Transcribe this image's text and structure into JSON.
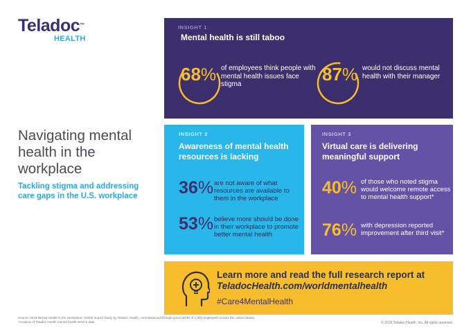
{
  "logo": {
    "name": "Teladoc",
    "tm": "™",
    "sub": "HEALTH"
  },
  "title": "Navigating mental health in the workplace",
  "subtitle": "Tackling stigma and addressing care gaps in the U.S. workplace",
  "insight1": {
    "label": "INSIGHT 1",
    "heading": "Mental health is still taboo",
    "stats": [
      {
        "number": "68",
        "pct": "%",
        "text": "of employees think people with mental health issues face stigma"
      },
      {
        "number": "87",
        "pct": "%",
        "text": "would not discuss mental health with their manager"
      }
    ]
  },
  "insight2": {
    "label": "INSIGHT 2",
    "heading": "Awareness of mental health resources is lacking",
    "stats": [
      {
        "number": "36",
        "pct": "%",
        "text": "are not aware of what resources are available to them in the workplace"
      },
      {
        "number": "53",
        "pct": "%",
        "text": "believe more should be done in their workplace to promote better mental health"
      }
    ]
  },
  "insight3": {
    "label": "INSIGHT 3",
    "heading": "Virtual care is delivering meaningful support",
    "stats": [
      {
        "number": "40",
        "pct": "%",
        "text": "of those who noted stigma would welcome remote access to mental health support*"
      },
      {
        "number": "76",
        "pct": "%",
        "text": "with depression reported improvement after third visit*"
      }
    ]
  },
  "cta": {
    "line1": "Learn more and read the full research report at",
    "line2": "TeladocHealth.com/worldmentalhealth",
    "hashtag": "#Care4MentalHealth"
  },
  "footer": {
    "source": "Source: 2019 Mental Health in the Workplace: Global Impact Study by Teladoc Health, commissioned through Ipsos MORI of 1,000 employees across the United States.",
    "note": "*Analysis of Teladoc Health mental health service data",
    "copyright": "© 2019 Teladoc Health, Inc. All rights reserved."
  },
  "colors": {
    "purple_dark": "#3c2f6d",
    "blue": "#29b6e8",
    "purple": "#6352a5",
    "yellow": "#f7bd2c"
  },
  "icons": [
    "head-lightbulb-icon"
  ]
}
